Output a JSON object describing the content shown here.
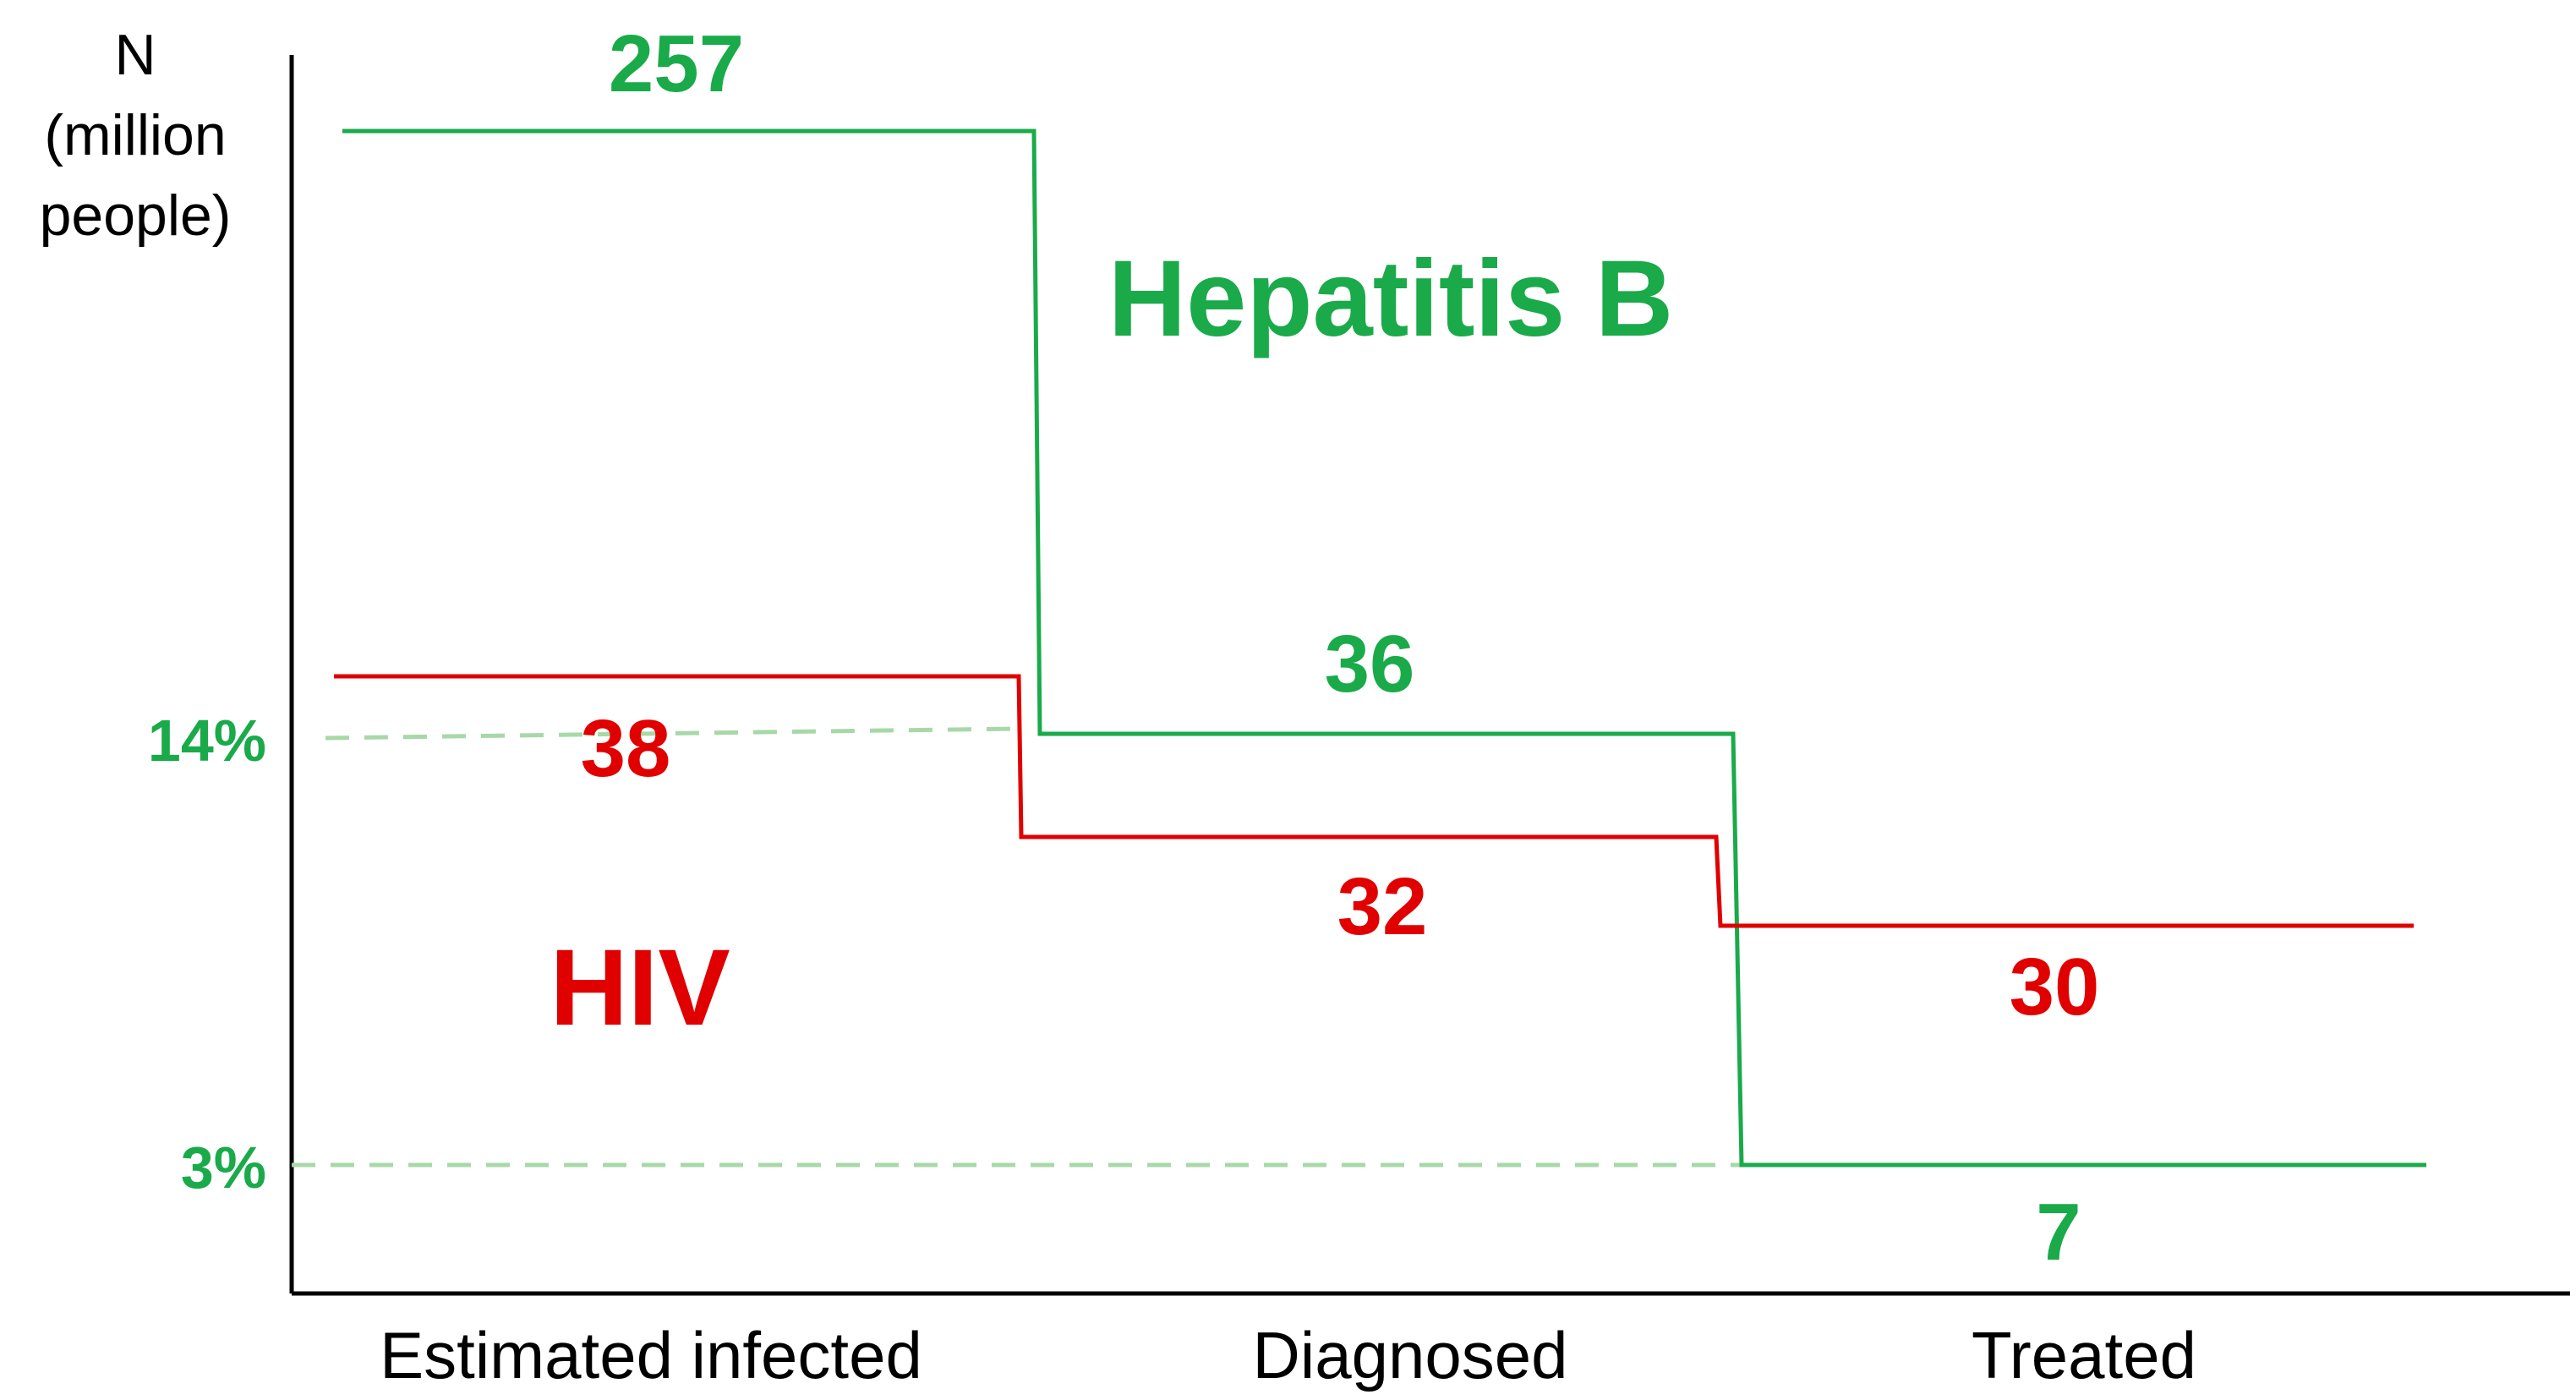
{
  "chart_data": {
    "type": "line",
    "subtype": "step",
    "title": "",
    "ylabel_lines": [
      "N",
      "(million",
      "people)"
    ],
    "xlabel": "",
    "categories": [
      "Estimated infected",
      "Diagnosed",
      "Treated"
    ],
    "ylim": [
      0,
      290
    ],
    "grid": false,
    "series": [
      {
        "name": "Hepatitis B",
        "color": "#1aaa4a",
        "values": [
          257,
          36,
          7
        ],
        "value_labels": [
          "257",
          "36",
          "7"
        ]
      },
      {
        "name": "HIV",
        "color": "#e00000",
        "values": [
          38,
          32,
          30
        ],
        "value_labels": [
          "38",
          "32",
          "30"
        ]
      }
    ],
    "reference_lines": [
      {
        "label": "14%",
        "value": 36,
        "color": "#a8d8a8"
      },
      {
        "label": "3%",
        "value": 7,
        "color": "#a8d8a8"
      }
    ]
  }
}
